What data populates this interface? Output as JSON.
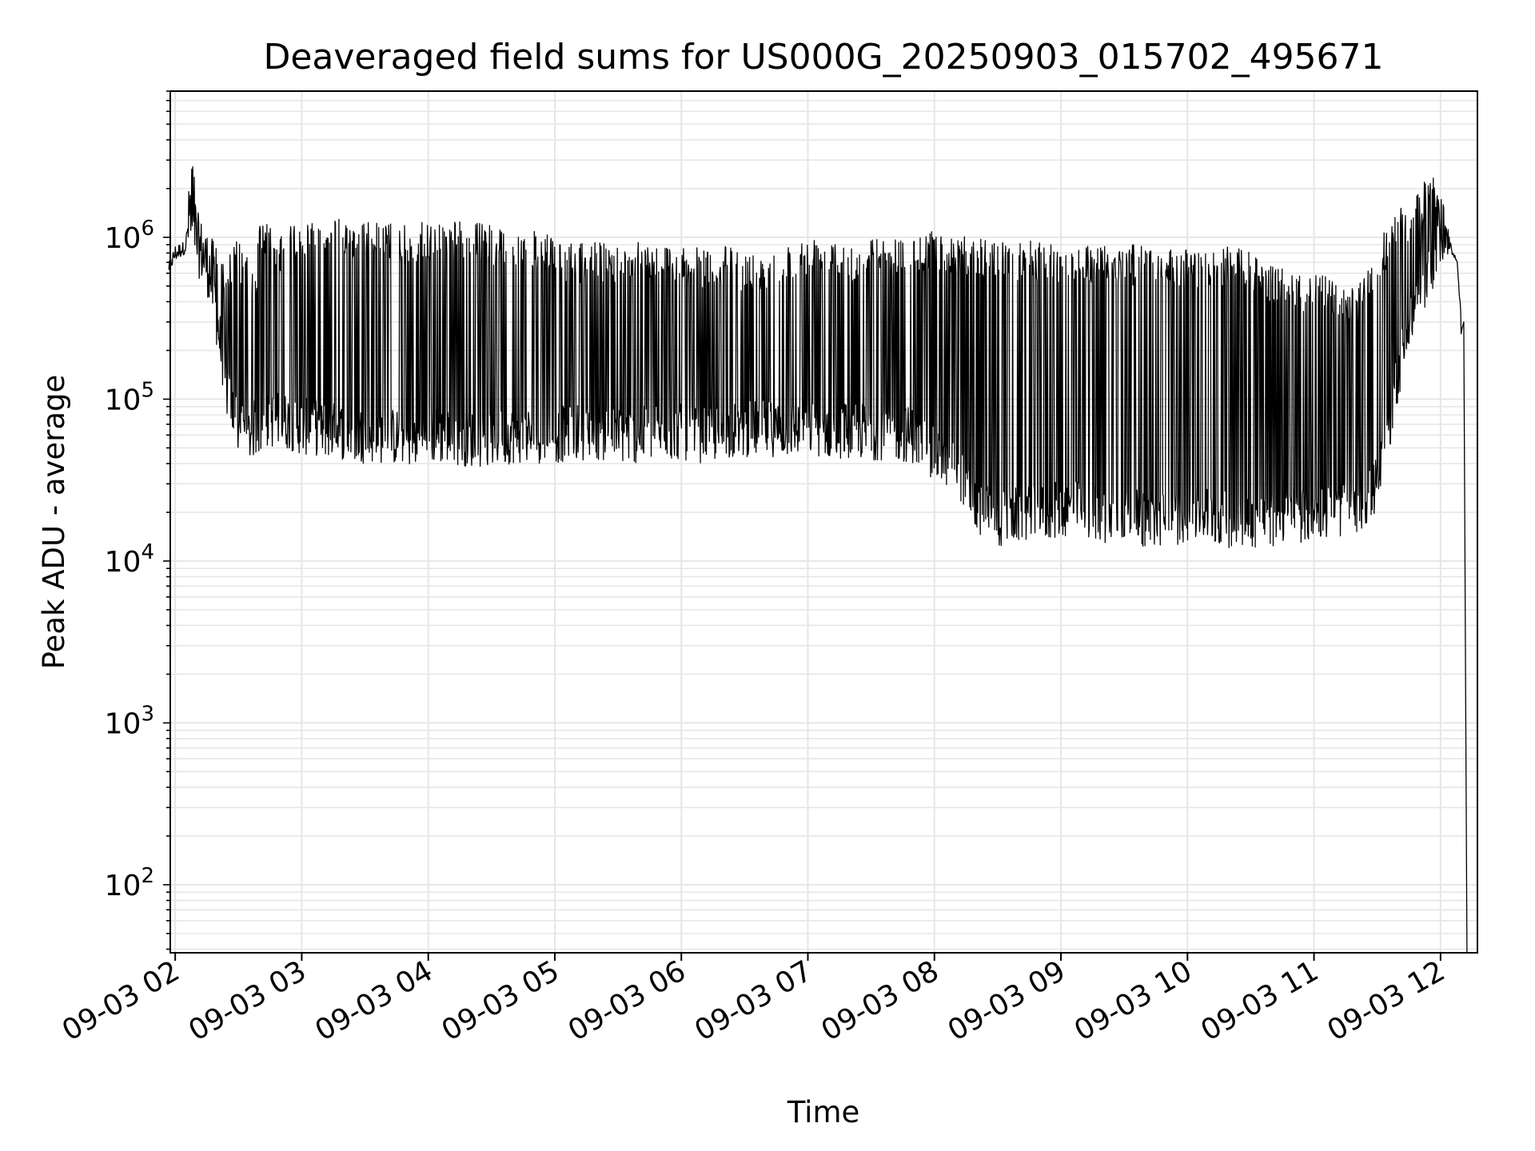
{
  "chart_data": {
    "type": "line",
    "title": "Deaveraged field sums for US000G_20250903_015702_495671",
    "xlabel": "Time",
    "ylabel": "Peak ADU - average",
    "yscale": "log",
    "grid": true,
    "line_color": "#000000",
    "grid_color": "#e6e6e6",
    "xlim": [
      "09-03 01:57:40",
      "09-03 12:17:30"
    ],
    "ylim": [
      38,
      8000000
    ],
    "x_ticks": [
      "09-03 02",
      "09-03 03",
      "09-03 04",
      "09-03 05",
      "09-03 06",
      "09-03 07",
      "09-03 08",
      "09-03 09",
      "09-03 10",
      "09-03 11",
      "09-03 12"
    ],
    "y_ticks": [
      {
        "value": 100,
        "base": "10",
        "exp": "2"
      },
      {
        "value": 1000,
        "base": "10",
        "exp": "3"
      },
      {
        "value": 10000,
        "base": "10",
        "exp": "4"
      },
      {
        "value": 100000,
        "base": "10",
        "exp": "5"
      },
      {
        "value": 1000000,
        "base": "10",
        "exp": "6"
      }
    ],
    "series": [
      {
        "description_note": "approximate envelope of the dense trace; x as time of day (HH:MM), y in ADU",
        "x": [
          "01:57",
          "02:00",
          "02:05",
          "02:08",
          "02:10",
          "02:15",
          "02:20",
          "02:25",
          "02:30",
          "02:35",
          "02:38",
          "02:40",
          "02:45",
          "02:50",
          "02:55",
          "03:00",
          "03:05",
          "03:10",
          "03:20",
          "03:30",
          "03:40",
          "03:50",
          "04:00",
          "04:10",
          "04:20",
          "04:30",
          "04:40",
          "04:50",
          "05:00",
          "05:10",
          "05:20",
          "05:30",
          "05:40",
          "05:50",
          "06:00",
          "06:10",
          "06:20",
          "06:30",
          "06:40",
          "06:50",
          "07:00",
          "07:10",
          "07:20",
          "07:30",
          "07:40",
          "07:50",
          "08:00",
          "08:10",
          "08:20",
          "08:30",
          "08:40",
          "08:50",
          "09:00",
          "09:10",
          "09:20",
          "09:30",
          "09:40",
          "09:50",
          "10:00",
          "10:10",
          "10:20",
          "10:30",
          "10:40",
          "10:50",
          "11:00",
          "11:10",
          "11:15",
          "11:20",
          "11:25",
          "11:30",
          "11:35",
          "11:40",
          "11:45",
          "11:50",
          "11:55",
          "12:00",
          "12:05",
          "12:08",
          "12:10",
          "12:11"
        ],
        "upper": [
          700000,
          900000,
          950000,
          4500000,
          1500000,
          1100000,
          900000,
          800000,
          1000000,
          700000,
          600000,
          1300000,
          1200000,
          1000000,
          1250000,
          1300000,
          1300000,
          1350000,
          1300000,
          1250000,
          1250000,
          1200000,
          1250000,
          1300000,
          1250000,
          1200000,
          1150000,
          1100000,
          1000000,
          900000,
          950000,
          900000,
          1000000,
          900000,
          900000,
          850000,
          900000,
          800000,
          850000,
          900000,
          1000000,
          1100000,
          950000,
          1000000,
          1000000,
          1050000,
          1100000,
          1050000,
          1000000,
          950000,
          950000,
          950000,
          900000,
          900000,
          950000,
          900000,
          900000,
          850000,
          850000,
          850000,
          900000,
          800000,
          700000,
          600000,
          600000,
          550000,
          500000,
          480000,
          600000,
          900000,
          1200000,
          1500000,
          1700000,
          1900000,
          2600000,
          2000000,
          900000,
          700000,
          300000,
          38
        ],
        "lower": [
          600000,
          700000,
          800000,
          800000,
          600000,
          450000,
          200000,
          70000,
          45000,
          40000,
          45000,
          45000,
          50000,
          50000,
          48000,
          45000,
          45000,
          44000,
          42000,
          40000,
          40000,
          38000,
          40000,
          40000,
          38000,
          38000,
          40000,
          40000,
          40000,
          42000,
          42000,
          40000,
          40000,
          42000,
          42000,
          40000,
          42000,
          44000,
          44000,
          44000,
          45000,
          43000,
          43000,
          42000,
          42000,
          40000,
          30000,
          28000,
          14000,
          12000,
          13000,
          13000,
          14000,
          14000,
          13000,
          13000,
          12000,
          12000,
          13000,
          13000,
          12000,
          12000,
          12000,
          13000,
          13000,
          14000,
          14000,
          13000,
          16000,
          20000,
          40000,
          100000,
          200000,
          300000,
          400000,
          600000,
          800000,
          700000,
          200000,
          38
        ]
      }
    ]
  }
}
